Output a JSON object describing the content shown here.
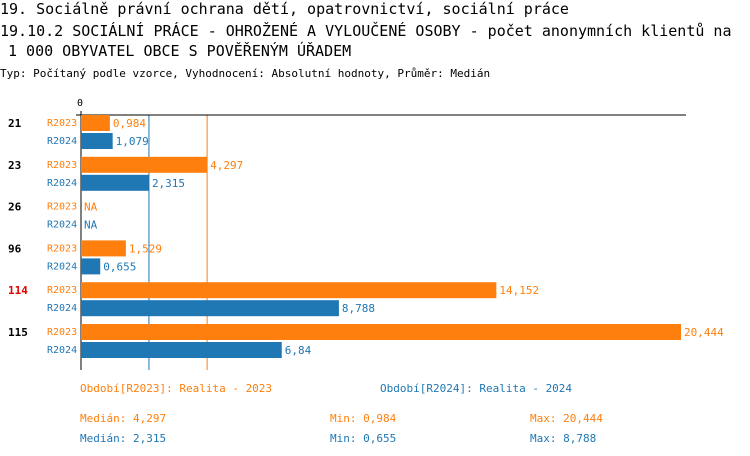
{
  "header": {
    "line1": "19. Sociálně právní ochrana dětí, opatrovnictví, sociální práce",
    "line2": "19.10.2 SOCIÁLNÍ PRÁCE - OHROŽENÉ A VYLOUČENÉ OSOBY - počet anonymních klientů na",
    "line3": "1 000 OBYVATEL OBCE S POVĚŘENÝM ÚŘADEM",
    "subtitle": "Typ: Počítaný podle vzorce, Vyhodnocení: Absolutní hodnoty, Průměr: Medián"
  },
  "colors": {
    "r2023": "#ff7f0e",
    "r2024": "#1f77b4",
    "highlight": "#e00000"
  },
  "chart_data": {
    "type": "bar",
    "orientation": "horizontal",
    "axis_zero_label": "0",
    "xlim": [
      0,
      20.444
    ],
    "categories": [
      "21",
      "23",
      "26",
      "96",
      "114",
      "115"
    ],
    "highlighted_category": "114",
    "series": [
      {
        "name": "R2023",
        "values": [
          0.984,
          4.297,
          null,
          1.529,
          14.152,
          20.444
        ],
        "labels": [
          "0,984",
          "4,297",
          "NA",
          "1,529",
          "14,152",
          "20,444"
        ],
        "median": 4.297
      },
      {
        "name": "R2024",
        "values": [
          1.079,
          2.315,
          null,
          0.655,
          8.788,
          6.84
        ],
        "labels": [
          "1,079",
          "2,315",
          "NA",
          "0,655",
          "8,788",
          "6,84"
        ],
        "median": 2.315
      }
    ]
  },
  "legend": {
    "r2023": "Období[R2023]: Realita - 2023",
    "r2024": "Období[R2024]: Realita - 2024"
  },
  "stats": {
    "r2023": {
      "median": "Medián: 4,297",
      "min": "Min: 0,984",
      "max": "Max: 20,444"
    },
    "r2024": {
      "median": "Medián: 2,315",
      "min": "Min: 0,655",
      "max": "Max: 8,788"
    }
  }
}
